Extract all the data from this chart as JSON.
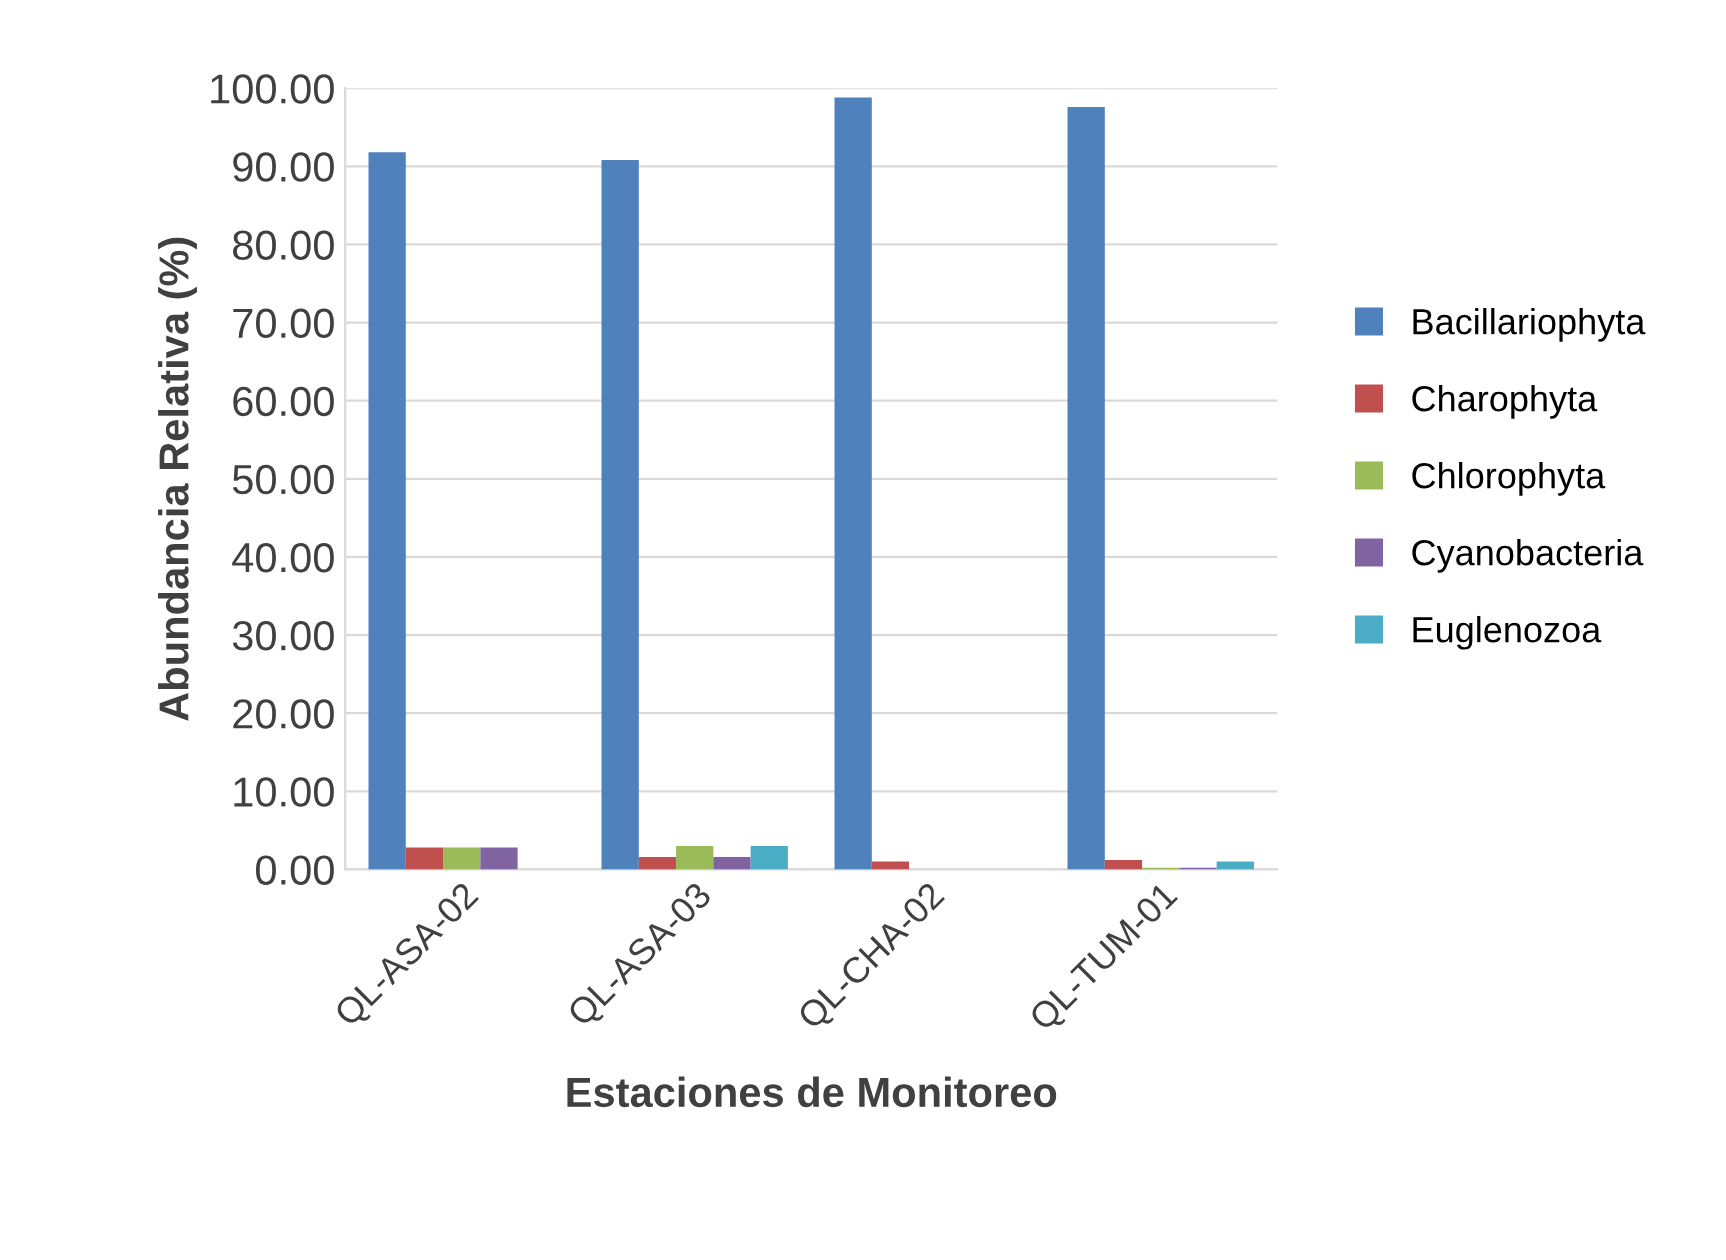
{
  "chart_data": {
    "type": "bar",
    "xlabel": "Estaciones de Monitoreo",
    "ylabel": "Abundancia Relativa (%)",
    "categories": [
      "QL-ASA-02",
      "QL-ASA-03",
      "QL-CHA-02",
      "QL-TUM-01"
    ],
    "series": [
      {
        "name": "Bacillariophyta",
        "color": "#4f81bd",
        "values": [
          91.8,
          90.8,
          98.8,
          97.6
        ]
      },
      {
        "name": "Charophyta",
        "color": "#c0504d",
        "values": [
          2.8,
          1.6,
          1.0,
          1.2
        ]
      },
      {
        "name": "Chlorophyta",
        "color": "#9bbb59",
        "values": [
          2.8,
          3.0,
          null,
          0.2
        ]
      },
      {
        "name": "Cyanobacteria",
        "color": "#8064a2",
        "values": [
          2.8,
          1.6,
          null,
          0.2
        ]
      },
      {
        "name": "Euglenozoa",
        "color": "#4bacc6",
        "values": [
          null,
          3.0,
          null,
          1.0
        ]
      }
    ],
    "ylim": [
      0,
      100
    ],
    "yticks": [
      {
        "value": 0,
        "label": "0.00"
      },
      {
        "value": 10,
        "label": "10.00"
      },
      {
        "value": 20,
        "label": "20.00"
      },
      {
        "value": 30,
        "label": "30.00"
      },
      {
        "value": 40,
        "label": "40.00"
      },
      {
        "value": 50,
        "label": "50.00"
      },
      {
        "value": 60,
        "label": "60.00"
      },
      {
        "value": 70,
        "label": "70.00"
      },
      {
        "value": 80,
        "label": "80.00"
      },
      {
        "value": 90,
        "label": "90.00"
      },
      {
        "value": 100,
        "label": "100.00"
      }
    ],
    "grid": "y",
    "legend": "right"
  }
}
